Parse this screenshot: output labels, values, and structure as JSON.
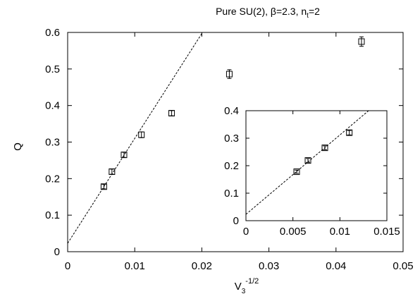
{
  "chart_data": [
    {
      "type": "scatter",
      "title_prefix": "Pure SU(2), β=2.3, n",
      "title_sub": "t",
      "title_suffix": "=2",
      "xlabel_base": "V",
      "xlabel_sub": "3",
      "xlabel_sup": "-1/2",
      "ylabel": "Q",
      "xlim": [
        0,
        0.05
      ],
      "ylim": [
        0,
        0.6
      ],
      "xticks": [
        0,
        0.01,
        0.02,
        0.03,
        0.04,
        0.05
      ],
      "xtick_labels": [
        "0",
        "0.01",
        "0.02",
        "0.03",
        "0.04",
        "0.05"
      ],
      "yticks": [
        0,
        0.1,
        0.2,
        0.3,
        0.4,
        0.5,
        0.6
      ],
      "ytick_labels": [
        "0",
        "0.1",
        "0.2",
        "0.3",
        "0.4",
        "0.5",
        "0.6"
      ],
      "series": [
        {
          "marker": "open-square",
          "x": [
            0.0054,
            0.0066,
            0.0084,
            0.011,
            0.0155,
            0.0241,
            0.0438
          ],
          "y": [
            0.178,
            0.219,
            0.265,
            0.32,
            0.379,
            0.486,
            0.575
          ],
          "yerr": [
            0.006,
            0.007,
            0.007,
            0.008,
            0.007,
            0.012,
            0.013
          ]
        }
      ],
      "fit_line": {
        "style": "dashed",
        "x": [
          0,
          0.0201
        ],
        "y": [
          0.023,
          0.6
        ]
      }
    },
    {
      "type": "scatter",
      "role": "inset",
      "xlim": [
        0,
        0.015
      ],
      "ylim": [
        0,
        0.4
      ],
      "xticks": [
        0,
        0.005,
        0.01,
        0.015
      ],
      "xtick_labels": [
        "0",
        "0.005",
        "0.01",
        "0.015"
      ],
      "yticks": [
        0,
        0.1,
        0.2,
        0.3,
        0.4
      ],
      "ytick_labels": [
        "0",
        "0.1",
        "0.2",
        "0.3",
        "0.4"
      ],
      "series": [
        {
          "marker": "open-square",
          "x": [
            0.0054,
            0.0066,
            0.0084,
            0.011
          ],
          "y": [
            0.178,
            0.219,
            0.265,
            0.32
          ],
          "yerr": [
            0.006,
            0.007,
            0.007,
            0.008
          ]
        }
      ],
      "fit_line": {
        "style": "dashed",
        "x": [
          0,
          0.0134
        ],
        "y": [
          0.023,
          0.41
        ]
      }
    }
  ]
}
